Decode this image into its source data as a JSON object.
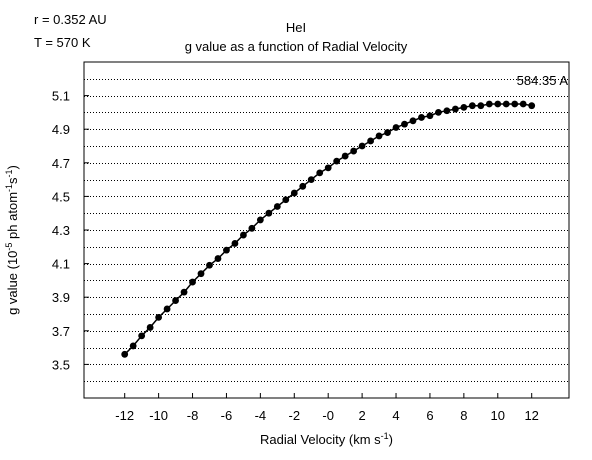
{
  "annotations": {
    "radius": "r = 0.352 AU",
    "temperature": "T = 570 K",
    "line": "584.35 A"
  },
  "chart_data": {
    "type": "scatter",
    "title": "HeI",
    "subtitle": "g value as a function of Radial Velocity",
    "xlabel": "Radial Velocity (km  s",
    "xlabel_sup": "-1",
    "xlabel_end": ")",
    "ylabel": "g value (10",
    "ylabel_sup1": "-5",
    "ylabel_mid": " ph atom",
    "ylabel_sup2": "-1",
    "ylabel_mid2": "s",
    "ylabel_sup3": "-1",
    "ylabel_end": ")",
    "xlim": [
      -14.4,
      14.2
    ],
    "ylim": [
      3.3,
      5.3
    ],
    "x_ticks": [
      -12,
      -10,
      -8,
      -6,
      -4,
      -2,
      0,
      2,
      4,
      6,
      8,
      10,
      12
    ],
    "x_tick_labels": [
      "-12",
      "-10",
      "-8",
      "-6",
      "-4",
      "-2",
      "-0",
      "2",
      "4",
      "6",
      "8",
      "10",
      "12"
    ],
    "y_ticks": [
      3.5,
      3.7,
      3.9,
      4.1,
      4.3,
      4.5,
      4.7,
      4.9,
      5.1
    ],
    "y_tick_labels": [
      "3.5",
      "3.7",
      "3.9",
      "4.1",
      "4.3",
      "4.5",
      "4.7",
      "4.9",
      "5.1"
    ],
    "grid": "horizontal dotted",
    "marker_color": "#000000",
    "series": [
      {
        "x": [
          -12,
          -11.5,
          -11,
          -10.5,
          -10,
          -9.5,
          -9,
          -8.5,
          -8,
          -7.5,
          -7,
          -6.5,
          -6,
          -5.5,
          -5,
          -4.5,
          -4,
          -3.5,
          -3,
          -2.5,
          -2,
          -1.5,
          -1,
          -0.5,
          0,
          0.5,
          1,
          1.5,
          2,
          2.5,
          3,
          3.5,
          4,
          4.5,
          5,
          5.5,
          6,
          6.5,
          7,
          7.5,
          8,
          8.5,
          9,
          9.5,
          10,
          10.5,
          11,
          11.5,
          12
        ],
        "y": [
          3.56,
          3.61,
          3.67,
          3.72,
          3.78,
          3.83,
          3.88,
          3.93,
          3.99,
          4.04,
          4.09,
          4.13,
          4.18,
          4.22,
          4.27,
          4.31,
          4.36,
          4.4,
          4.44,
          4.48,
          4.52,
          4.56,
          4.6,
          4.64,
          4.67,
          4.71,
          4.74,
          4.77,
          4.8,
          4.83,
          4.86,
          4.88,
          4.91,
          4.93,
          4.95,
          4.97,
          4.98,
          5.0,
          5.01,
          5.02,
          5.03,
          5.04,
          5.04,
          5.05,
          5.05,
          5.05,
          5.05,
          5.05,
          5.04
        ]
      }
    ]
  }
}
